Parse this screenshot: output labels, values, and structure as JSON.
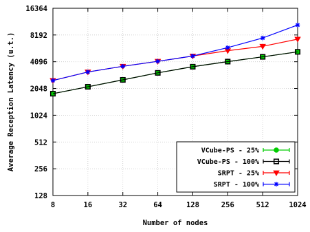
{
  "chart_data": {
    "type": "line",
    "x": [
      8,
      16,
      32,
      64,
      128,
      256,
      512,
      1024
    ],
    "xscale": "log2",
    "yscale": "log2",
    "ylim": [
      128,
      16364
    ],
    "xlabel": "Number of nodes",
    "ylabel": "Average Reception Latency (u.t.)",
    "x_ticks": [
      "8",
      "16",
      "32",
      "64",
      "128",
      "256",
      "512",
      "1024"
    ],
    "y_ticks": [
      {
        "value": 128,
        "label": "128"
      },
      {
        "value": 256,
        "label": "256"
      },
      {
        "value": 512,
        "label": "512"
      },
      {
        "value": 1024,
        "label": "1024"
      },
      {
        "value": 2048,
        "label": "2048"
      },
      {
        "value": 4096,
        "label": "4096"
      },
      {
        "value": 8192,
        "label": "8192"
      },
      {
        "value": 16364,
        "label": "16364"
      }
    ],
    "grid": true,
    "legend_position": "bottom-right",
    "series": [
      {
        "name": "VCube-PS - 25%",
        "color": "#00cc00",
        "marker": "circle",
        "values": [
          1790,
          2140,
          2560,
          3070,
          3600,
          4110,
          4650,
          5290
        ]
      },
      {
        "name": "VCube-PS - 100%",
        "color": "#000000",
        "marker": "square",
        "values": [
          1790,
          2140,
          2560,
          3070,
          3600,
          4110,
          4650,
          5290
        ]
      },
      {
        "name": "SRPT - 25%",
        "color": "#ff0000",
        "marker": "triangle-down",
        "values": [
          2520,
          3140,
          3640,
          4140,
          4750,
          5450,
          6100,
          7350
        ]
      },
      {
        "name": "SRPT - 100%",
        "color": "#0000ff",
        "marker": "star",
        "values": [
          2520,
          3140,
          3640,
          4140,
          4750,
          5900,
          7570,
          10600
        ]
      }
    ]
  }
}
